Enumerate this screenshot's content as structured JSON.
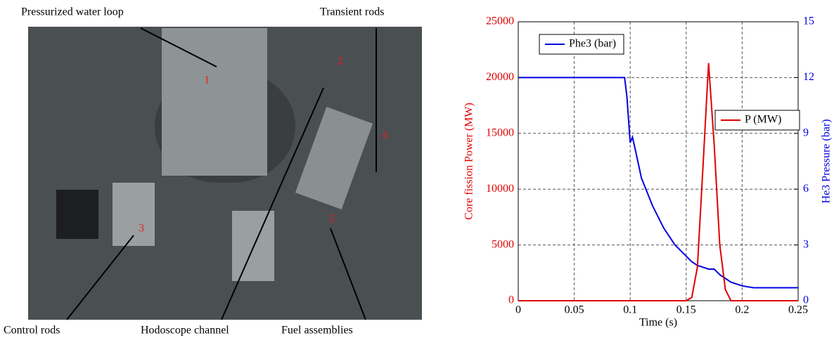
{
  "photo": {
    "labels": [
      "Pressurized water loop",
      "Transient rods",
      "Control rods",
      "Hodoscope channel",
      "Fuel assemblies"
    ],
    "numbers": [
      "1",
      "2",
      "3",
      "4",
      "5"
    ]
  },
  "chart_data": {
    "type": "line",
    "xlabel": "Time (s)",
    "ylabel": "Core fission Power (MW)",
    "y2label": "He3 Pressure (bar)",
    "x": [
      0,
      0.05,
      0.09,
      0.095,
      0.097,
      0.1,
      0.102,
      0.105,
      0.11,
      0.12,
      0.13,
      0.14,
      0.15,
      0.155,
      0.16,
      0.165,
      0.17,
      0.175,
      0.18,
      0.185,
      0.19,
      0.2,
      0.21,
      0.25
    ],
    "xlim": [
      0,
      0.25
    ],
    "xticks": [
      0,
      0.05,
      0.1,
      0.15,
      0.2,
      0.25
    ],
    "ylim": [
      0,
      25000
    ],
    "yticks": [
      0,
      5000,
      10000,
      15000,
      20000,
      25000
    ],
    "y2lim": [
      0,
      15
    ],
    "y2ticks": [
      0,
      3,
      6,
      9,
      12,
      15
    ],
    "grid": true,
    "ycolor": "#e00000",
    "y2color": "#0000e0",
    "series": [
      {
        "name": "Phe3 (bar)",
        "color": "#0000e0",
        "axis": "y2",
        "values": [
          12,
          12,
          12,
          12,
          11,
          8.5,
          8.8,
          8,
          6.6,
          5.1,
          3.9,
          3.0,
          2.4,
          2.1,
          1.9,
          1.8,
          1.7,
          1.7,
          1.4,
          1.2,
          1.0,
          0.8,
          0.7,
          0.7
        ]
      },
      {
        "name": "P (MW)",
        "color": "#e00000",
        "values": [
          0,
          0,
          0,
          0,
          0,
          0,
          0,
          0,
          0,
          0,
          0,
          0,
          0,
          300,
          3000,
          12000,
          21300,
          14000,
          5000,
          1000,
          0,
          0,
          0,
          0
        ]
      }
    ]
  }
}
